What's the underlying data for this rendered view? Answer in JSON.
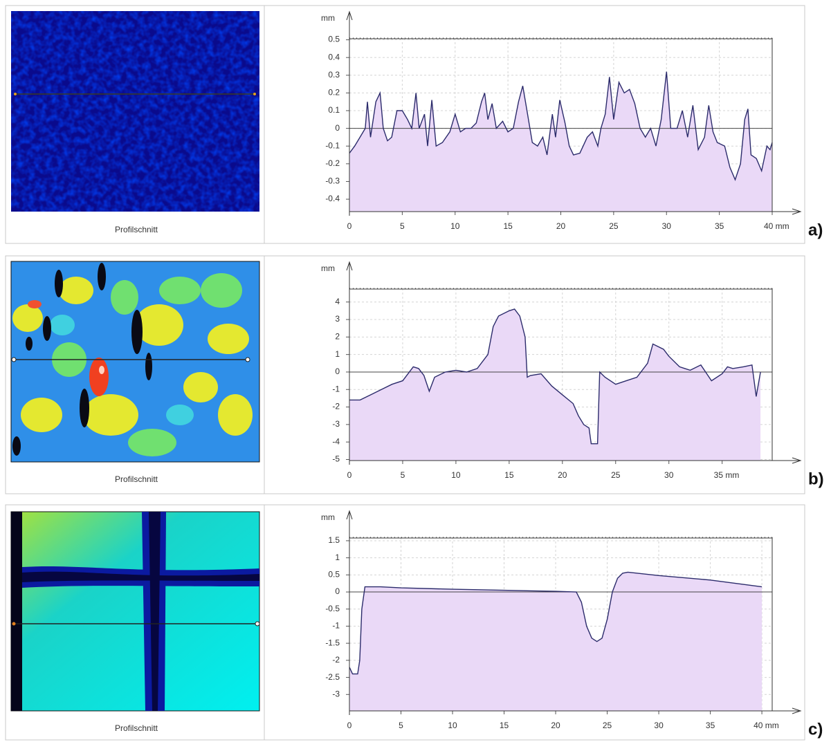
{
  "chart_data": [
    {
      "type": "area",
      "panel_label": "a)",
      "image_caption": "Profilschnitt",
      "y_label": "mm",
      "line_color": "#2b2b6b",
      "fill_color": "#ead9f7",
      "grid": true,
      "xlim": [
        0,
        40
      ],
      "ylim": [
        -0.47,
        0.51
      ],
      "xticks": [
        0,
        5,
        10,
        15,
        20,
        25,
        30,
        35,
        {
          "value": 40,
          "label": "40 mm"
        }
      ],
      "yticks": [
        0.5,
        0.4,
        0.3,
        0.2,
        0.1,
        0,
        -0.1,
        -0.2,
        -0.3,
        -0.4
      ],
      "x": [
        0,
        0.5,
        1,
        1.5,
        1.7,
        2,
        2.5,
        2.9,
        3.2,
        3.6,
        4,
        4.5,
        5,
        5.5,
        5.9,
        6.3,
        6.6,
        7.1,
        7.4,
        7.8,
        8.2,
        8.8,
        9.5,
        10,
        10.5,
        11,
        11.5,
        12,
        12.5,
        12.8,
        13.1,
        13.5,
        13.9,
        14.5,
        15,
        15.5,
        16,
        16.4,
        16.8,
        17.3,
        17.8,
        18.3,
        18.7,
        19.2,
        19.5,
        19.9,
        20.4,
        20.8,
        21.2,
        21.8,
        22.5,
        23,
        23.5,
        23.8,
        24.2,
        24.6,
        25,
        25.5,
        26,
        26.5,
        27,
        27.5,
        28,
        28.5,
        29,
        29.5,
        30,
        30.4,
        31,
        31.5,
        32,
        32.5,
        33,
        33.6,
        34,
        34.4,
        34.8,
        35.5,
        36,
        36.5,
        37,
        37.4,
        37.7,
        38,
        38.5,
        39,
        39.5,
        39.8,
        40
      ],
      "values": [
        -0.14,
        -0.1,
        -0.05,
        0.0,
        0.15,
        -0.05,
        0.15,
        0.2,
        0.0,
        -0.07,
        -0.05,
        0.1,
        0.1,
        0.05,
        0.0,
        0.2,
        0.0,
        0.08,
        -0.1,
        0.16,
        -0.1,
        -0.08,
        -0.02,
        0.08,
        -0.02,
        0.0,
        0.0,
        0.03,
        0.15,
        0.2,
        0.05,
        0.14,
        0.0,
        0.04,
        -0.02,
        0.0,
        0.15,
        0.24,
        0.1,
        -0.08,
        -0.1,
        -0.05,
        -0.15,
        0.08,
        -0.05,
        0.16,
        0.03,
        -0.1,
        -0.15,
        -0.14,
        -0.05,
        -0.02,
        -0.1,
        0.0,
        0.08,
        0.29,
        0.05,
        0.26,
        0.2,
        0.22,
        0.14,
        0.0,
        -0.05,
        0.0,
        -0.1,
        0.05,
        0.32,
        0.0,
        0.0,
        0.1,
        -0.05,
        0.13,
        -0.12,
        -0.05,
        0.13,
        -0.02,
        -0.08,
        -0.1,
        -0.22,
        -0.29,
        -0.2,
        0.05,
        0.11,
        -0.15,
        -0.17,
        -0.24,
        -0.1,
        -0.12,
        -0.08
      ]
    },
    {
      "type": "area",
      "panel_label": "b)",
      "image_caption": "Profilschnitt",
      "y_label": "mm",
      "line_color": "#2b2b6b",
      "fill_color": "#ead9f7",
      "grid": true,
      "xlim": [
        0,
        39.7
      ],
      "ylim": [
        -5.06,
        4.78
      ],
      "xticks": [
        0,
        5,
        10,
        15,
        20,
        25,
        30,
        {
          "value": 35,
          "label": "35 mm"
        }
      ],
      "yticks": [
        4,
        3,
        2,
        1,
        0,
        -1,
        -2,
        -3,
        -4,
        -5
      ],
      "x": [
        0,
        1,
        2,
        3,
        4,
        5,
        6,
        6.5,
        7,
        7.5,
        8,
        9,
        10,
        11,
        12,
        13,
        13.5,
        14,
        15,
        15.5,
        16,
        16.5,
        16.7,
        17,
        18,
        19,
        20,
        21,
        21.5,
        22,
        22.5,
        22.7,
        23.3,
        23.5,
        24,
        25,
        26,
        27,
        28,
        28.5,
        29.5,
        30,
        31,
        31.5,
        32,
        33,
        34,
        35,
        35.5,
        36,
        37,
        37.8,
        38.2,
        38.6
      ],
      "values": [
        -1.6,
        -1.6,
        -1.3,
        -1.0,
        -0.7,
        -0.5,
        0.3,
        0.2,
        -0.2,
        -1.1,
        -0.3,
        0.0,
        0.1,
        0.0,
        0.2,
        1.0,
        2.6,
        3.2,
        3.5,
        3.6,
        3.2,
        2.0,
        -0.3,
        -0.2,
        -0.1,
        -0.8,
        -1.3,
        -1.8,
        -2.5,
        -3.0,
        -3.2,
        -4.1,
        -4.1,
        0.0,
        -0.3,
        -0.7,
        -0.5,
        -0.3,
        0.5,
        1.6,
        1.3,
        0.9,
        0.3,
        0.2,
        0.1,
        0.4,
        -0.5,
        -0.1,
        0.3,
        0.2,
        0.3,
        0.4,
        -1.4,
        0.0
      ]
    },
    {
      "type": "area",
      "panel_label": "c)",
      "image_caption": "Profilschnitt",
      "y_label": "mm",
      "line_color": "#2b2b6b",
      "fill_color": "#ead9f7",
      "grid": true,
      "xlim": [
        0,
        41
      ],
      "ylim": [
        -3.48,
        1.6
      ],
      "xticks": [
        0,
        5,
        10,
        15,
        20,
        25,
        30,
        35,
        {
          "value": 40,
          "label": "40 mm"
        }
      ],
      "yticks": [
        1.5,
        1,
        0.5,
        0,
        -0.5,
        -1,
        -1.5,
        -2,
        -2.5,
        -3
      ],
      "x": [
        0,
        0.3,
        0.8,
        1,
        1.2,
        1.5,
        3,
        5,
        10,
        15,
        20,
        22,
        22.5,
        23,
        23.5,
        24,
        24.5,
        25,
        25.5,
        26,
        26.5,
        27,
        30,
        35,
        40
      ],
      "values": [
        -2.2,
        -2.4,
        -2.4,
        -2.0,
        -0.5,
        0.15,
        0.15,
        0.12,
        0.08,
        0.05,
        0.02,
        0.0,
        -0.3,
        -1.0,
        -1.35,
        -1.45,
        -1.35,
        -0.8,
        0.0,
        0.4,
        0.55,
        0.58,
        0.48,
        0.35,
        0.15
      ]
    }
  ]
}
